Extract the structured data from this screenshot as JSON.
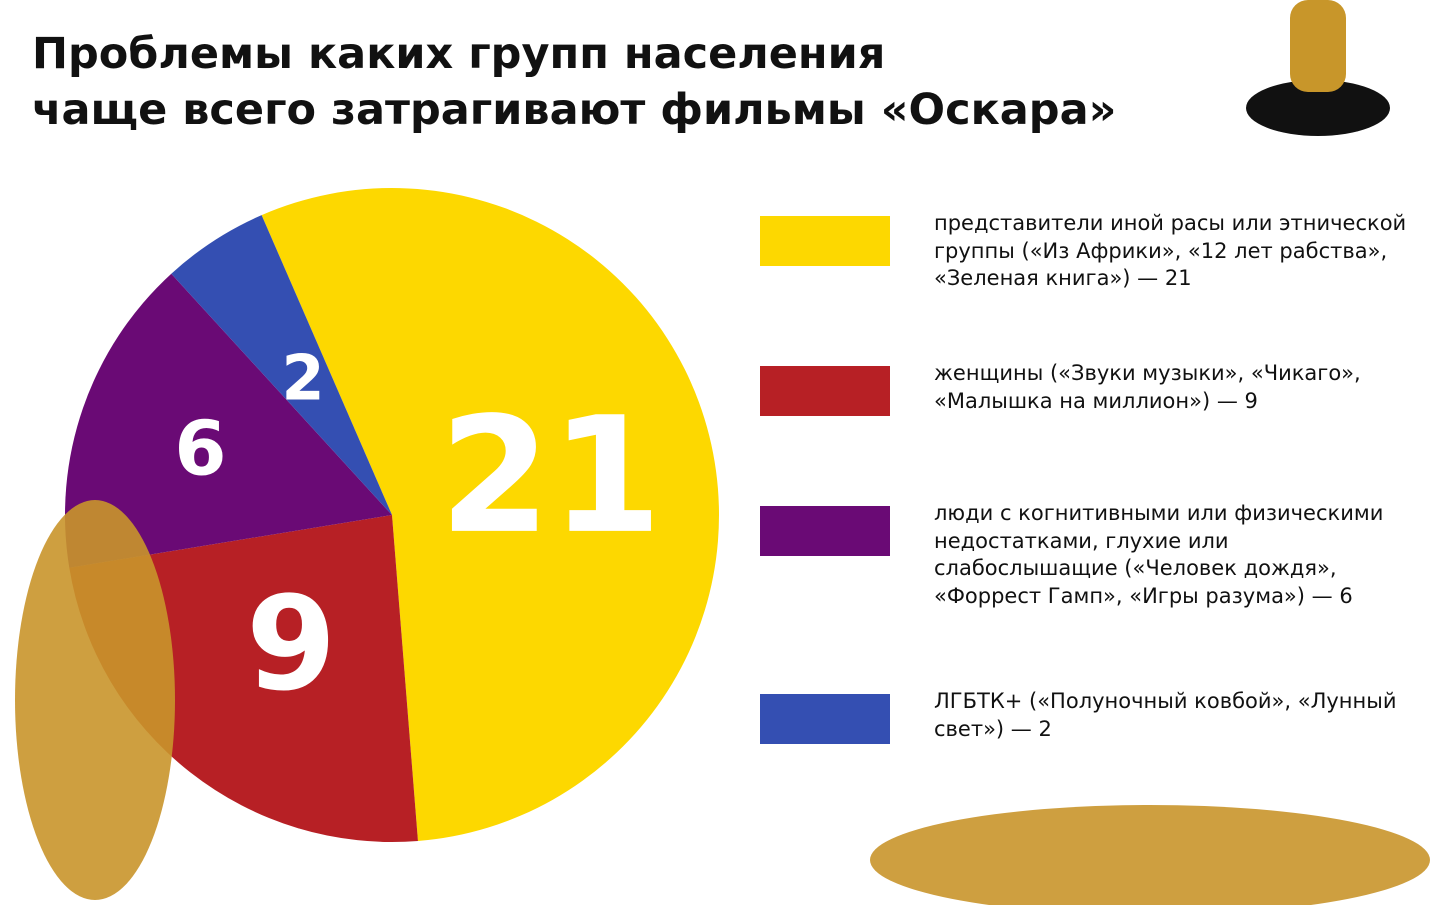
{
  "chart_data": {
    "type": "pie",
    "title": "Проблемы каких групп населения\nчаще всего затрагивают фильмы «Оскара»",
    "categories": [
      "представители иной расы или этнической группы («Из Африки», «12 лет рабства», «Зеленая книга») — 21",
      "женщины («Звуки музыки», «Чикаго», «Малышка на миллион») — 9",
      "люди с когнитивными или физическими недостатками, глухие или слабослышащие («Человек дождя», «Форрест Гамп», «Игры разума») — 6",
      "ЛГБТК+ («Полуночный ковбой», «Лунный свет») — 2"
    ],
    "values": [
      21,
      9,
      6,
      2
    ],
    "colors": [
      "#fdd800",
      "#b72025",
      "#6a0a75",
      "#344fb2"
    ]
  }
}
